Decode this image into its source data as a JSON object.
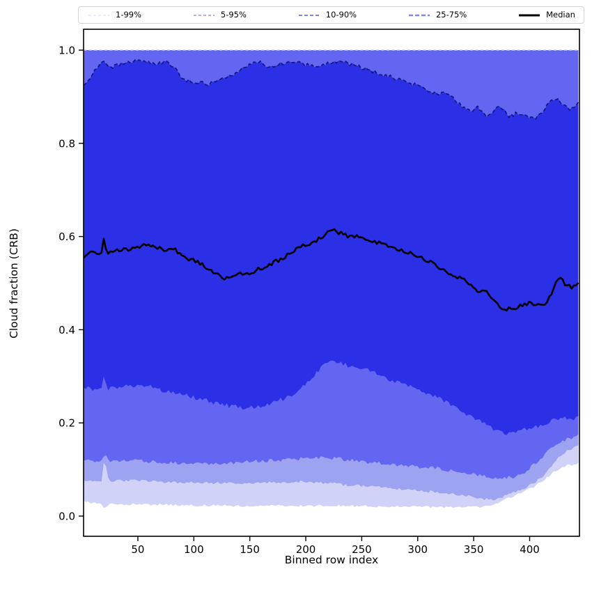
{
  "figure": {
    "background": "#ffffff"
  },
  "legend": {
    "items": [
      {
        "label": "1-99%",
        "color": "#d2d4f6",
        "width": 1.1,
        "dash": "4 3"
      },
      {
        "label": "5-95%",
        "color": "#9696eb",
        "width": 1.4,
        "dash": "4 3"
      },
      {
        "label": "10-90%",
        "color": "#6969eb",
        "width": 1.7,
        "dash": "5 3"
      },
      {
        "label": "25-75%",
        "color": "#8287f0",
        "width": 2.4,
        "dash": "6 3"
      },
      {
        "label": "Median",
        "color": "#000000",
        "width": 3.0,
        "dash": ""
      }
    ]
  },
  "chart_data": {
    "type": "line",
    "subtype": "percentile-fan",
    "title": "",
    "xlabel": "Binned row index",
    "ylabel": "Cloud fraction (CRB)",
    "xlim": [
      1.5,
      444.5
    ],
    "ylim": [
      -0.043,
      1.045
    ],
    "xticks": [
      50,
      100,
      150,
      200,
      250,
      300,
      350,
      400
    ],
    "yticks": [
      0.0,
      0.2,
      0.4,
      0.6,
      0.8,
      1.0
    ],
    "grid": false,
    "legend_position": "top, expanded, 5 columns",
    "band_fills": [
      {
        "name": "band-1-99",
        "lower": "p1",
        "upper": "p99",
        "color": "#d0d2f8"
      },
      {
        "name": "band-5-95",
        "lower": "p5",
        "upper": "p95",
        "color": "#9da2f1"
      },
      {
        "name": "band-10-90",
        "lower": "p10",
        "upper": "p90",
        "color": "#6366f0"
      },
      {
        "name": "band-25-75",
        "lower": "p25",
        "upper": "p75",
        "color": "#2b2fe5"
      }
    ],
    "lines": {
      "upper_saturated_edge": {
        "y": 1.0,
        "color": "#bcc0f2",
        "width": 1.4,
        "dash": "4 3.5"
      },
      "p75_edge": {
        "color": "#15187a",
        "width": 1.7,
        "dash": "5 3.5"
      },
      "median": {
        "color": "#000000",
        "width": 2.6,
        "dash": ""
      }
    },
    "series": [
      {
        "name": "p1",
        "role": "1st percentile",
        "x": [
          2,
          10,
          18,
          20,
          24,
          60,
          100,
          140,
          180,
          220,
          260,
          300,
          340,
          355,
          365,
          375,
          385,
          395,
          405,
          415,
          425,
          435,
          444
        ],
        "y": [
          0.031,
          0.028,
          0.026,
          0.012,
          0.026,
          0.025,
          0.023,
          0.022,
          0.022,
          0.022,
          0.021,
          0.02,
          0.019,
          0.019,
          0.024,
          0.032,
          0.042,
          0.052,
          0.064,
          0.082,
          0.1,
          0.109,
          0.114
        ]
      },
      {
        "name": "p5",
        "role": "5th percentile",
        "x": [
          2,
          10,
          18,
          20,
          24,
          40,
          60,
          80,
          100,
          120,
          140,
          160,
          180,
          200,
          215,
          230,
          245,
          260,
          275,
          290,
          305,
          320,
          335,
          350,
          365,
          375,
          385,
          395,
          405,
          415,
          424,
          434,
          444
        ],
        "y": [
          0.076,
          0.075,
          0.074,
          0.125,
          0.076,
          0.076,
          0.075,
          0.073,
          0.072,
          0.071,
          0.071,
          0.072,
          0.073,
          0.074,
          0.072,
          0.068,
          0.065,
          0.063,
          0.06,
          0.057,
          0.054,
          0.051,
          0.047,
          0.04,
          0.034,
          0.04,
          0.05,
          0.058,
          0.072,
          0.094,
          0.122,
          0.14,
          0.151
        ]
      },
      {
        "name": "p10",
        "role": "10th percentile",
        "x": [
          2,
          10,
          18,
          20,
          24,
          40,
          60,
          80,
          100,
          115,
          130,
          146,
          160,
          176,
          192,
          209,
          225,
          240,
          260,
          275,
          288,
          304,
          319,
          334,
          350,
          362,
          372,
          382,
          392,
          401,
          410,
          418,
          426,
          434,
          444
        ],
        "y": [
          0.12,
          0.118,
          0.117,
          0.136,
          0.118,
          0.119,
          0.117,
          0.114,
          0.112,
          0.111,
          0.113,
          0.117,
          0.118,
          0.12,
          0.122,
          0.126,
          0.124,
          0.12,
          0.115,
          0.111,
          0.108,
          0.105,
          0.102,
          0.096,
          0.09,
          0.085,
          0.081,
          0.083,
          0.086,
          0.106,
          0.122,
          0.143,
          0.155,
          0.166,
          0.173
        ]
      },
      {
        "name": "p25",
        "role": "25th percentile",
        "x": [
          2,
          8,
          14,
          18,
          20,
          23,
          32,
          40,
          48,
          56,
          64,
          72,
          80,
          88,
          96,
          104,
          112,
          120,
          128,
          136,
          145,
          152,
          160,
          168,
          176,
          184,
          192,
          200,
          207,
          214,
          221,
          228,
          238,
          248,
          258,
          268,
          280,
          290,
          301,
          312,
          326,
          338,
          350,
          360,
          370,
          381,
          390,
          401,
          410,
          422,
          432,
          444
        ],
        "y": [
          0.278,
          0.272,
          0.27,
          0.272,
          0.305,
          0.272,
          0.275,
          0.28,
          0.282,
          0.28,
          0.275,
          0.27,
          0.268,
          0.264,
          0.258,
          0.252,
          0.248,
          0.242,
          0.238,
          0.236,
          0.233,
          0.235,
          0.237,
          0.242,
          0.248,
          0.256,
          0.266,
          0.282,
          0.3,
          0.318,
          0.335,
          0.33,
          0.323,
          0.317,
          0.311,
          0.299,
          0.289,
          0.281,
          0.274,
          0.26,
          0.245,
          0.228,
          0.21,
          0.198,
          0.185,
          0.178,
          0.182,
          0.188,
          0.196,
          0.208,
          0.21,
          0.211
        ]
      },
      {
        "name": "median",
        "role": "50th percentile (Median)",
        "x": [
          2,
          8,
          14,
          18,
          20,
          22,
          30,
          40,
          50,
          58,
          66,
          74,
          82,
          90,
          100,
          108,
          116,
          124,
          132,
          140,
          148,
          156,
          164,
          172,
          180,
          188,
          196,
          204,
          212,
          218,
          224,
          230,
          238,
          246,
          254,
          262,
          270,
          278,
          286,
          294,
          302,
          310,
          318,
          326,
          334,
          342,
          350,
          356,
          362,
          373,
          380,
          385,
          390,
          398,
          404,
          410,
          413,
          420,
          426,
          433,
          437,
          444
        ],
        "y": [
          0.555,
          0.565,
          0.562,
          0.57,
          0.6,
          0.565,
          0.57,
          0.572,
          0.575,
          0.585,
          0.578,
          0.572,
          0.576,
          0.555,
          0.548,
          0.54,
          0.525,
          0.513,
          0.51,
          0.522,
          0.518,
          0.528,
          0.535,
          0.545,
          0.555,
          0.568,
          0.58,
          0.585,
          0.595,
          0.605,
          0.615,
          0.608,
          0.6,
          0.6,
          0.592,
          0.588,
          0.585,
          0.575,
          0.57,
          0.565,
          0.555,
          0.548,
          0.535,
          0.525,
          0.515,
          0.505,
          0.49,
          0.48,
          0.483,
          0.447,
          0.445,
          0.443,
          0.45,
          0.457,
          0.456,
          0.458,
          0.452,
          0.478,
          0.513,
          0.495,
          0.491,
          0.502
        ]
      },
      {
        "name": "p75",
        "role": "75th percentile",
        "x": [
          2,
          6,
          10,
          14,
          18,
          20,
          24,
          30,
          36,
          44,
          52,
          60,
          68,
          76,
          84,
          90,
          96,
          102,
          108,
          114,
          120,
          128,
          136,
          144,
          152,
          158,
          164,
          170,
          178,
          186,
          192,
          200,
          208,
          214,
          222,
          230,
          238,
          246,
          254,
          262,
          270,
          278,
          286,
          294,
          302,
          310,
          318,
          325,
          334,
          341,
          350,
          354,
          362,
          368,
          373,
          382,
          388,
          393,
          400,
          405,
          412,
          418,
          424,
          431,
          436,
          444
        ],
        "y": [
          0.925,
          0.938,
          0.95,
          0.962,
          0.972,
          0.978,
          0.962,
          0.966,
          0.97,
          0.976,
          0.977,
          0.972,
          0.97,
          0.974,
          0.96,
          0.94,
          0.933,
          0.928,
          0.931,
          0.927,
          0.932,
          0.94,
          0.948,
          0.96,
          0.97,
          0.975,
          0.967,
          0.964,
          0.971,
          0.977,
          0.973,
          0.968,
          0.964,
          0.968,
          0.974,
          0.975,
          0.971,
          0.967,
          0.959,
          0.953,
          0.948,
          0.94,
          0.934,
          0.929,
          0.921,
          0.912,
          0.905,
          0.909,
          0.891,
          0.876,
          0.869,
          0.878,
          0.857,
          0.868,
          0.881,
          0.858,
          0.864,
          0.86,
          0.856,
          0.853,
          0.868,
          0.893,
          0.898,
          0.88,
          0.872,
          0.886
        ]
      },
      {
        "name": "p90",
        "role": "90th percentile (saturated at 1.0)",
        "x": [
          2,
          444
        ],
        "y": [
          1.0,
          1.0
        ]
      },
      {
        "name": "p95",
        "role": "95th percentile (saturated at 1.0)",
        "x": [
          2,
          444
        ],
        "y": [
          1.0,
          1.0
        ]
      },
      {
        "name": "p99",
        "role": "99th percentile (saturated at 1.0)",
        "x": [
          2,
          444
        ],
        "y": [
          1.0,
          1.0
        ]
      }
    ]
  }
}
